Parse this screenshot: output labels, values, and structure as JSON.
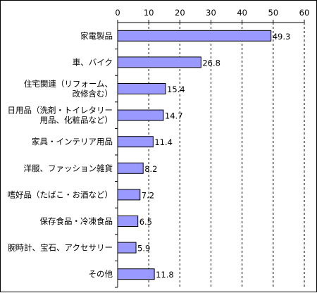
{
  "chart_data": {
    "type": "bar",
    "orientation": "horizontal",
    "title": "",
    "xlabel": "",
    "ylabel": "",
    "xlim": [
      0,
      60
    ],
    "ticks": [
      0,
      10,
      20,
      30,
      40,
      50,
      60
    ],
    "tick_labels": [
      "0",
      "10",
      "20",
      "30",
      "40",
      "50",
      "60"
    ],
    "grid": "dashed vertical",
    "categories": [
      [
        "家電製品"
      ],
      [
        "車、バイク"
      ],
      [
        "住宅関連（リフォーム、",
        "改修含む）"
      ],
      [
        "日用品（洗剤・トイレタリー",
        "用品、化粧品など）"
      ],
      [
        "家具・インテリア用品"
      ],
      [
        "洋服、ファッション雑貨"
      ],
      [
        "嗜好品（たばこ・お酒など）"
      ],
      [
        "保存食品・冷凍食品"
      ],
      [
        "腕時計、宝石、アクセサリー"
      ],
      [
        "その他"
      ]
    ],
    "values": [
      49.3,
      26.8,
      15.4,
      14.7,
      11.4,
      8.2,
      7.2,
      6.5,
      5.9,
      11.8
    ],
    "value_labels": [
      "49.3",
      "26.8",
      "15.4",
      "14.7",
      "11.4",
      "8.2",
      "7.2",
      "6.5",
      "5.9",
      "11.8"
    ],
    "colors": {
      "bar_fill": "#9999ff",
      "bar_stroke": "#000000",
      "axis": "#000000",
      "grid": "#000000"
    }
  }
}
